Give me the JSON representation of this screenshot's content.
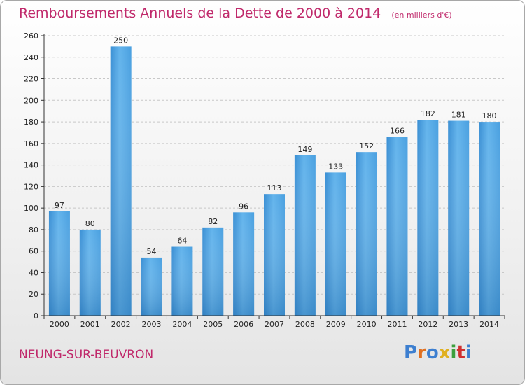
{
  "header": {
    "title": "Remboursements Annuels de la Dette de 2000 à 2014",
    "subtitle": "(en milliers d'€)"
  },
  "footer": {
    "commune": "NEUNG-SUR-BEUVRON",
    "logo_text": "Proxiti"
  },
  "colors": {
    "title": "#c0296b",
    "bar_light": "#63b4ec",
    "bar_dark": "#2a7fc4",
    "grid": "#c8c8c8"
  },
  "chart_data": {
    "type": "bar",
    "title": "Remboursements Annuels de la Dette de 2000 à 2014",
    "subtitle": "(en milliers d'€)",
    "categories": [
      "2000",
      "2001",
      "2002",
      "2003",
      "2004",
      "2005",
      "2006",
      "2007",
      "2008",
      "2009",
      "2010",
      "2011",
      "2012",
      "2013",
      "2014"
    ],
    "values": [
      97,
      80,
      250,
      54,
      64,
      82,
      96,
      113,
      149,
      133,
      152,
      166,
      182,
      181,
      180
    ],
    "ylim": [
      0,
      260
    ],
    "yticks": [
      0,
      20,
      40,
      60,
      80,
      100,
      120,
      140,
      160,
      180,
      200,
      220,
      240,
      260
    ],
    "grid": true,
    "legend": "none"
  }
}
